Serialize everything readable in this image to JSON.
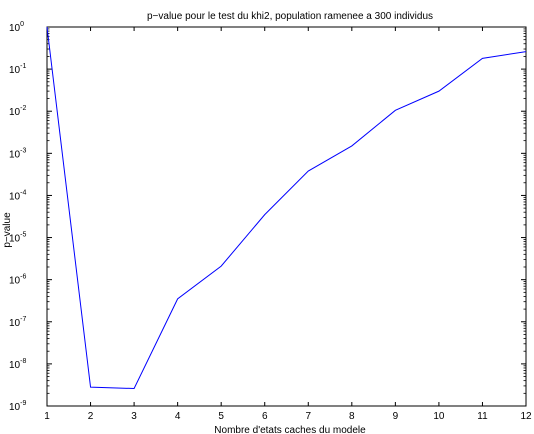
{
  "chart_data": {
    "type": "line",
    "title": "p−value pour le test du khi2, population ramenee a 300 individus",
    "xlabel": "Nombre d'etats caches du modele",
    "ylabel": "p−value",
    "xlim": [
      1,
      12
    ],
    "ylim_exponents": [
      -9,
      0
    ],
    "y_scale": "log",
    "grid": false,
    "x_ticks": [
      "1",
      "2",
      "3",
      "4",
      "5",
      "6",
      "7",
      "8",
      "9",
      "10",
      "11",
      "12"
    ],
    "y_ticks": [
      {
        "base": "10",
        "exp": "0"
      },
      {
        "base": "10",
        "exp": "-1"
      },
      {
        "base": "10",
        "exp": "-2"
      },
      {
        "base": "10",
        "exp": "-3"
      },
      {
        "base": "10",
        "exp": "-4"
      },
      {
        "base": "10",
        "exp": "-5"
      },
      {
        "base": "10",
        "exp": "-6"
      },
      {
        "base": "10",
        "exp": "-7"
      },
      {
        "base": "10",
        "exp": "-8"
      },
      {
        "base": "10",
        "exp": "-9"
      }
    ],
    "series": [
      {
        "color": "#0000ff",
        "x": [
          1,
          2,
          3,
          4,
          5,
          6,
          7,
          8,
          9,
          10,
          11,
          12
        ],
        "y": [
          1.0,
          2.8e-09,
          2.6e-09,
          3.5e-07,
          2.1e-06,
          3.5e-05,
          0.00038,
          0.0015,
          0.0105,
          0.03,
          0.18,
          0.26
        ]
      }
    ]
  }
}
